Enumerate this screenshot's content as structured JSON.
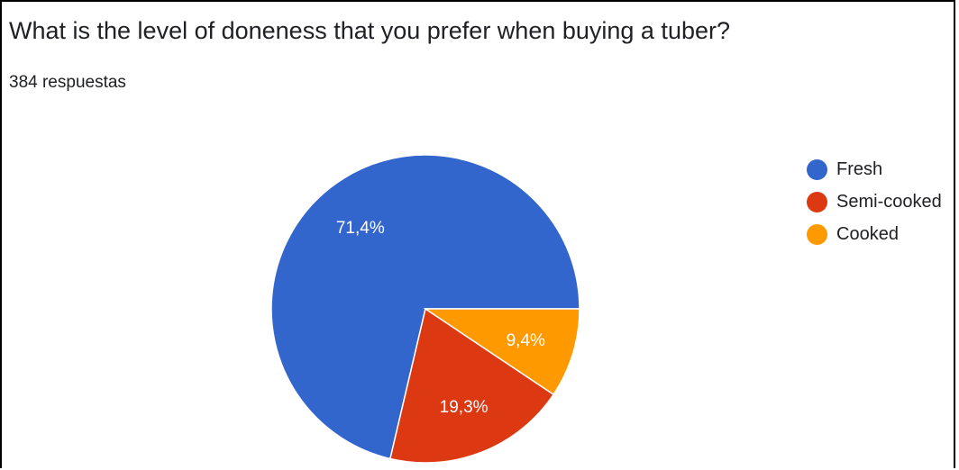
{
  "header": {
    "title": "What is the level of doneness that you prefer when buying a tuber?",
    "subtitle": "384 respuestas"
  },
  "chart_data": {
    "type": "pie",
    "title": "What is the level of doneness that you prefer when buying a tuber?",
    "subtitle": "384 respuestas",
    "legend_position": "right",
    "slices": [
      {
        "label": "Fresh",
        "value": 71.4,
        "display": "71,4%",
        "color": "#3366cc"
      },
      {
        "label": "Semi-cooked",
        "value": 19.3,
        "display": "19,3%",
        "color": "#dc3912"
      },
      {
        "label": "Cooked",
        "value": 9.4,
        "display": "9,4%",
        "color": "#ff9900"
      }
    ]
  }
}
